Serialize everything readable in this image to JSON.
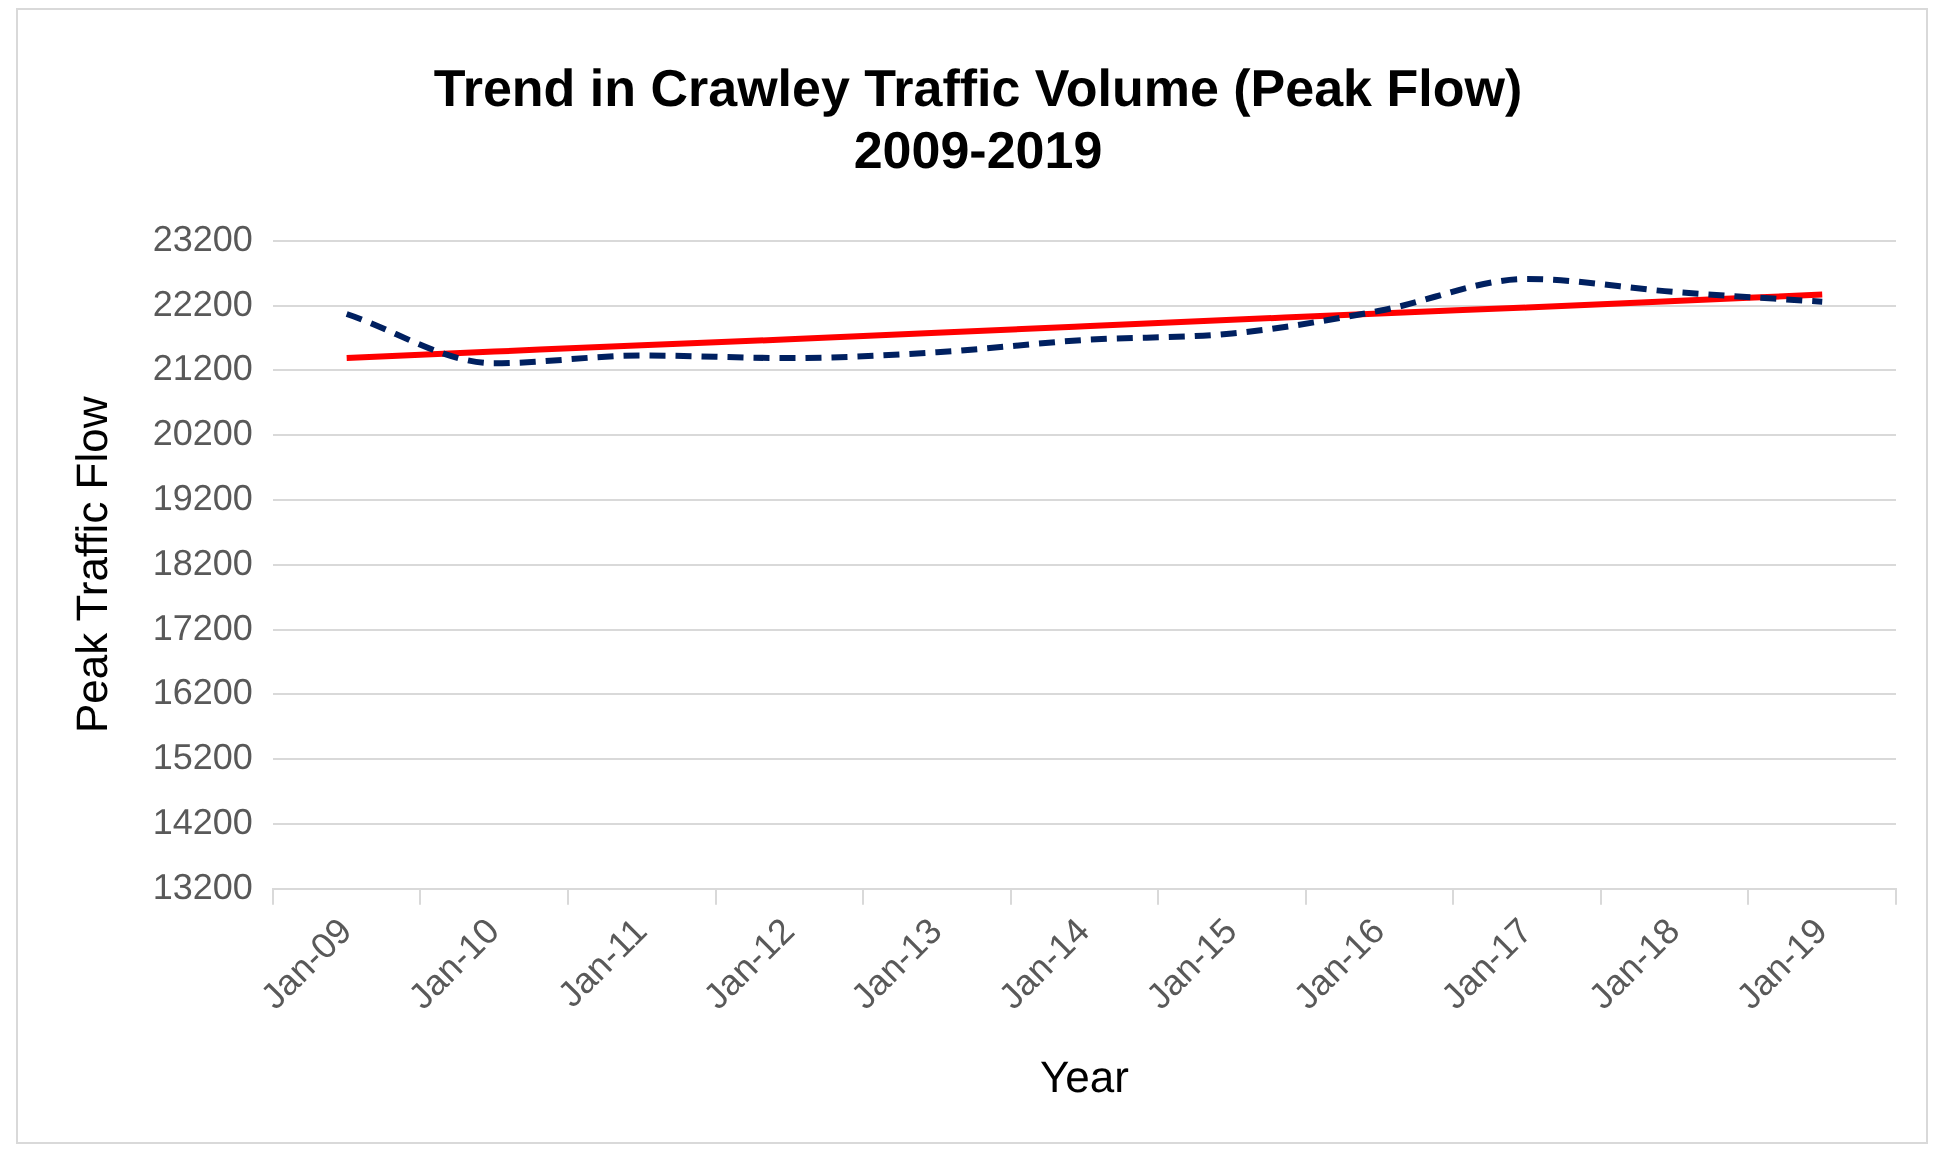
{
  "chart_data": {
    "type": "line",
    "title": "Trend in Crawley Traffic Volume (Peak Flow)\n2009-2019",
    "xlabel": "Year",
    "ylabel": "Peak Traffic Flow",
    "categories": [
      "Jan-09",
      "Jan-10",
      "Jan-11",
      "Jan-12",
      "Jan-13",
      "Jan-14",
      "Jan-15",
      "Jan-16",
      "Jan-17",
      "Jan-18",
      "Jan-19"
    ],
    "series": [
      {
        "color": "#002060",
        "line_style": "dashed",
        "values": [
          22070,
          21310,
          21430,
          21390,
          21480,
          21670,
          21770,
          22120,
          22610,
          22410,
          22260
        ]
      },
      {
        "color": "#ff0000",
        "line_style": "solid",
        "values": [
          21390,
          21490,
          21590,
          21680,
          21780,
          21880,
          21980,
          22080,
          22170,
          22270,
          22370
        ]
      }
    ],
    "ylim": [
      13200,
      23200
    ],
    "yticks": [
      13200,
      14200,
      15200,
      16200,
      17200,
      18200,
      19200,
      20200,
      21200,
      22200,
      23200
    ],
    "grid": "y",
    "legend": false,
    "marker": "none"
  }
}
